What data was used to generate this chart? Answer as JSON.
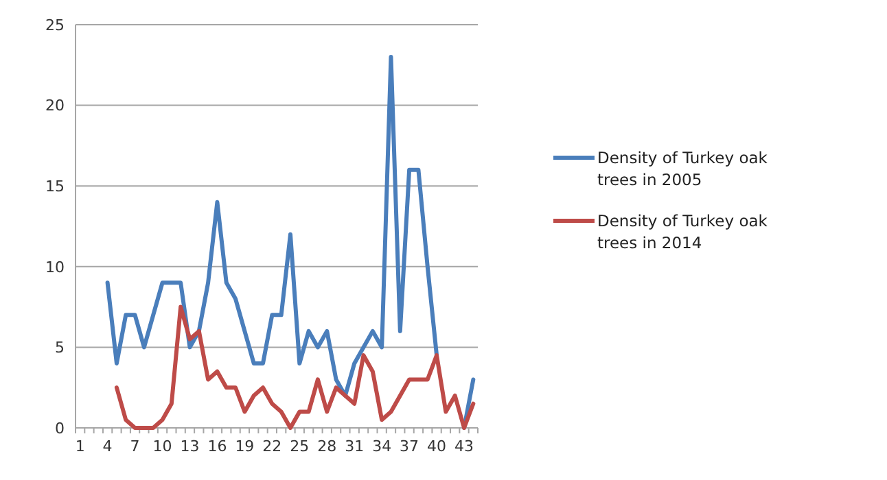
{
  "chart_data": {
    "type": "line",
    "categories": [
      "1",
      null,
      null,
      "4",
      null,
      null,
      "7",
      null,
      null,
      "10",
      null,
      null,
      "13",
      null,
      null,
      "16",
      null,
      null,
      "19",
      null,
      null,
      "22",
      null,
      null,
      "25",
      null,
      null,
      "28",
      null,
      null,
      "31",
      null,
      null,
      "34",
      null,
      null,
      "37",
      null,
      null,
      "40",
      null,
      null,
      "43",
      null
    ],
    "series": [
      {
        "name": "Density of Turkey oak trees in 2005",
        "color": "#4a7ebb",
        "values": [
          null,
          null,
          null,
          9,
          4,
          7,
          7,
          5,
          7,
          9,
          9,
          9,
          5,
          6,
          9,
          14,
          9,
          8,
          6,
          4,
          4,
          7,
          7,
          12,
          4,
          6,
          5,
          6,
          3,
          2,
          4,
          5,
          6,
          5,
          23,
          6,
          16,
          16,
          10,
          4.5,
          null,
          null,
          0,
          3
        ]
      },
      {
        "name": "Density of Turkey oak trees in 2014",
        "color": "#be4b48",
        "values": [
          null,
          null,
          null,
          null,
          2.5,
          0.5,
          0,
          0,
          0,
          0.5,
          1.5,
          7.5,
          5.5,
          6,
          3,
          3.5,
          2.5,
          2.5,
          1,
          2,
          2.5,
          1.5,
          1,
          0,
          1,
          1,
          3,
          1,
          2.5,
          2,
          1.5,
          4.5,
          3.5,
          0.5,
          1,
          2,
          3,
          3,
          3,
          4.5,
          1,
          2,
          0,
          1.5
        ]
      }
    ],
    "ylim": [
      0,
      25
    ],
    "yticks": [
      0,
      5,
      10,
      15,
      20,
      25
    ],
    "grid": "y",
    "legend": "right",
    "marker": "none",
    "line_style": "solid"
  }
}
